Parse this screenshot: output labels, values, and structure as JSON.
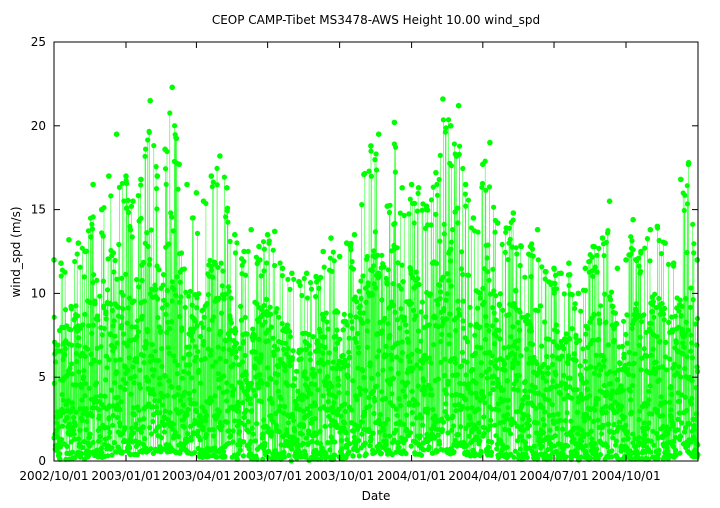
{
  "chart_data": {
    "type": "scatter",
    "title": "CEOP CAMP-Tibet MS3478-AWS Height 10.00 wind_spd",
    "xlabel": "Date",
    "ylabel": "wind_spd (m/s)",
    "x_range": [
      "2002/10/01",
      "2005/01/01"
    ],
    "ylim": [
      0,
      25
    ],
    "y_ticks": [
      0,
      5,
      10,
      15,
      20,
      25
    ],
    "x_ticks": [
      {
        "date": "2002/10/01",
        "label": "2002/10/01"
      },
      {
        "date": "2003/01/01",
        "label": "2003/01/01"
      },
      {
        "date": "2003/04/01",
        "label": "2003/04/01"
      },
      {
        "date": "2003/07/01",
        "label": "2003/07/01"
      },
      {
        "date": "2003/10/01",
        "label": "2003/10/01"
      },
      {
        "date": "2004/01/01",
        "label": "2004/01/01"
      },
      {
        "date": "2004/04/01",
        "label": "2004/04/01"
      },
      {
        "date": "2004/07/01",
        "label": "2004/07/01"
      },
      {
        "date": "2004/10/01",
        "label": "2004/10/01"
      }
    ],
    "grid": false,
    "legend": "none",
    "series_color": "#00ff00",
    "marker": "filled-circle-with-connecting-line",
    "series": [
      {
        "x": [
          "2002/10/01",
          "2002/10/10",
          "2002/10/20",
          "2002/11/01",
          "2002/11/10",
          "2002/11/20",
          "2002/12/01",
          "2002/12/10",
          "2002/12/20",
          "2003/01/01",
          "2003/01/10",
          "2003/01/20",
          "2003/02/01",
          "2003/02/10",
          "2003/02/20",
          "2003/03/01",
          "2003/03/10",
          "2003/03/20",
          "2003/04/01",
          "2003/04/10",
          "2003/04/20",
          "2003/05/01",
          "2003/05/10",
          "2003/05/20",
          "2003/06/01",
          "2003/06/10",
          "2003/06/20",
          "2003/07/01",
          "2003/07/10",
          "2003/07/20",
          "2003/08/01",
          "2003/08/10",
          "2003/08/20",
          "2003/09/01",
          "2003/09/10",
          "2003/09/20",
          "2003/10/01",
          "2003/10/10",
          "2003/10/20",
          "2003/11/01",
          "2003/11/10",
          "2003/11/20",
          "2003/12/01",
          "2003/12/10",
          "2003/12/20",
          "2004/01/01",
          "2004/01/10",
          "2004/01/20",
          "2004/02/01",
          "2004/02/10",
          "2004/02/20",
          "2004/03/01",
          "2004/03/10",
          "2004/03/20",
          "2004/04/01",
          "2004/04/10",
          "2004/04/20",
          "2004/05/01",
          "2004/05/10",
          "2004/05/20",
          "2004/06/01",
          "2004/06/10",
          "2004/06/20",
          "2004/07/01",
          "2004/07/10",
          "2004/07/20",
          "2004/08/01",
          "2004/08/10",
          "2004/08/20",
          "2004/09/01",
          "2004/09/10",
          "2004/09/20",
          "2004/10/01",
          "2004/10/10",
          "2004/10/20",
          "2004/11/01",
          "2004/11/10",
          "2004/11/20",
          "2004/12/01",
          "2004/12/10",
          "2004/12/20",
          "2004/12/31"
        ],
        "y_max": [
          12.0,
          11.8,
          13.2,
          13.0,
          12.5,
          16.5,
          15.0,
          17.0,
          19.5,
          17.0,
          15.5,
          16.8,
          21.5,
          17.0,
          18.6,
          22.3,
          17.7,
          16.5,
          16.0,
          15.5,
          17.0,
          18.2,
          16.3,
          13.5,
          12.5,
          13.8,
          12.8,
          13.5,
          13.7,
          11.5,
          11.2,
          10.7,
          11.2,
          11.0,
          12.5,
          13.3,
          12.2,
          13.0,
          13.5,
          17.1,
          18.8,
          19.5,
          15.2,
          20.2,
          16.3,
          16.5,
          16.3,
          15.2,
          17.2,
          21.6,
          20.0,
          21.2,
          16.5,
          14.5,
          17.7,
          19.0,
          14.2,
          13.9,
          14.8,
          12.8,
          12.8,
          13.8,
          11.3,
          11.5,
          11.2,
          11.8,
          10.0,
          11.5,
          12.8,
          13.3,
          15.5,
          11.5,
          12.0,
          14.4,
          12.5,
          13.8,
          14.0,
          13.0,
          11.8,
          16.8,
          17.8,
          12.0
        ],
        "y_min": [
          0.1,
          0.1,
          0.1,
          0.2,
          0.1,
          0.3,
          0.2,
          0.3,
          0.4,
          0.5,
          0.3,
          0.4,
          0.5,
          0.4,
          0.5,
          0.6,
          0.4,
          0.5,
          0.3,
          0.2,
          0.3,
          0.2,
          0.2,
          0.1,
          0.1,
          0.1,
          0.1,
          0.1,
          0.1,
          0.1,
          0.0,
          0.1,
          0.0,
          0.1,
          0.1,
          0.1,
          0.1,
          0.2,
          0.2,
          0.3,
          0.4,
          0.4,
          0.3,
          0.4,
          0.4,
          0.4,
          0.3,
          0.4,
          0.5,
          0.5,
          0.4,
          0.5,
          0.3,
          0.3,
          0.3,
          0.3,
          0.2,
          0.2,
          0.2,
          0.1,
          0.1,
          0.1,
          0.1,
          0.1,
          0.1,
          0.1,
          0.0,
          0.1,
          0.1,
          0.1,
          0.1,
          0.1,
          0.1,
          0.1,
          0.1,
          0.1,
          0.1,
          0.1,
          0.2,
          0.3,
          0.3,
          0.2
        ]
      }
    ]
  }
}
